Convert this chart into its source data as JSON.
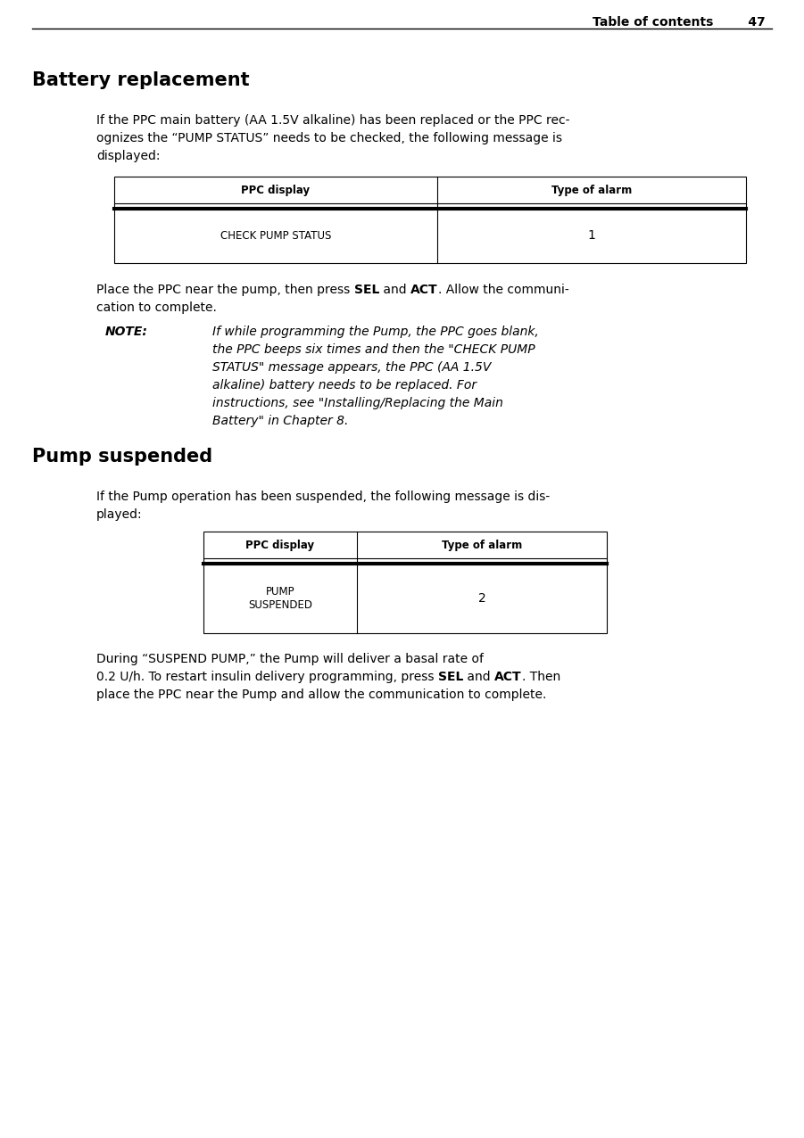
{
  "page_header_text": "Table of contents",
  "page_number": "47",
  "section1_title": "Battery replacement",
  "section1_para1_lines": [
    "If the PPC main battery (AA 1.5V alkaline) has been replaced or the PPC rec-",
    "ognizes the “PUMP STATUS” needs to be checked, the following message is",
    "displayed:"
  ],
  "table1_col1_header": "PPC display",
  "table1_col2_header": "Type of alarm",
  "table1_col1_data": "CHECK PUMP STATUS",
  "table1_col2_data": "1",
  "para2_line1_plain": "Place the PPC near the pump, then press ",
  "para2_line1_bold1": "SEL",
  "para2_line1_mid": " and ",
  "para2_line1_bold2": "ACT",
  "para2_line1_end": ". Allow the communi-",
  "para2_line2": "cation to complete.",
  "note_label": "NOTE:",
  "note_lines": [
    "If while programming the Pump, the PPC goes blank,",
    "the PPC beeps six times and then the \"CHECK PUMP",
    "STATUS\" message appears, the PPC (AA 1.5V",
    "alkaline) battery needs to be replaced. For",
    "instructions, see \"Installing/Replacing the Main",
    "Battery\" in Chapter 8."
  ],
  "section2_title": "Pump suspended",
  "section2_para1_lines": [
    "If the Pump operation has been suspended, the following message is dis-",
    "played:"
  ],
  "table2_col1_header": "PPC display",
  "table2_col2_header": "Type of alarm",
  "table2_col1_data": "PUMP\nSUSPENDED",
  "table2_col2_data": "2",
  "s2p2_line1": "During “SUSPEND PUMP,” the Pump will deliver a basal rate of",
  "s2p2_line2_plain": "0.2 U/h. To restart insulin delivery programming, press ",
  "s2p2_line2_bold1": "SEL",
  "s2p2_line2_mid": " and ",
  "s2p2_line2_bold2": "ACT",
  "s2p2_line2_end": ". Then",
  "s2p2_line3": "place the PPC near the Pump and allow the communication to complete.",
  "bg_color": "#ffffff",
  "text_color": "#000000"
}
